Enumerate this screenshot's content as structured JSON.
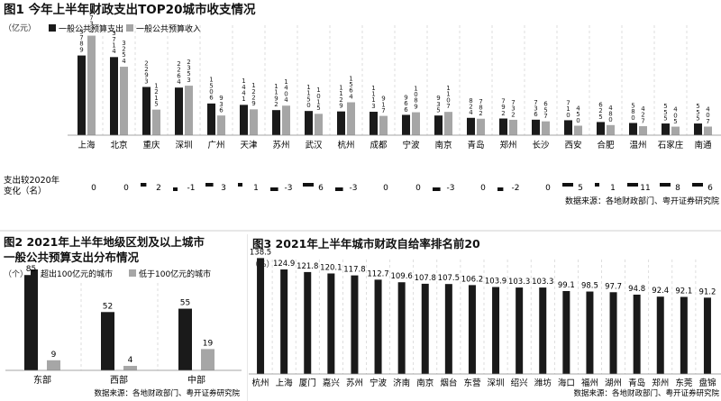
{
  "colors": {
    "expenditure": "#1a1a1a",
    "revenue": "#a6a6a6",
    "title": "#111111",
    "grid": "#d0d0d0"
  },
  "chart_data": [
    {
      "id": "fig1",
      "type": "bar",
      "title": "图1 今年上半年财政支出TOP20城市收支情况",
      "unit": "（亿元）",
      "legend_position": "top-left",
      "categories": [
        "上海",
        "北京",
        "重庆",
        "深圳",
        "广州",
        "天津",
        "苏州",
        "武汉",
        "杭州",
        "成都",
        "宁波",
        "南京",
        "青岛",
        "郑州",
        "长沙",
        "西安",
        "合肥",
        "温州",
        "石家庄",
        "南通"
      ],
      "series": [
        {
          "name": "一般公共预算支出",
          "color": "#1a1a1a",
          "values": [
            3789,
            3714,
            2293,
            2264,
            1506,
            1441,
            1192,
            1150,
            1129,
            1113,
            966,
            935,
            824,
            792,
            736,
            710,
            625,
            580,
            555,
            555
          ]
        },
        {
          "name": "一般公共预算收入",
          "color": "#a6a6a6",
          "values": [
            4732,
            3254,
            1215,
            2353,
            936,
            1229,
            1404,
            1015,
            1564,
            917,
            1089,
            1107,
            782,
            732,
            657,
            450,
            480,
            427,
            405,
            407
          ]
        }
      ],
      "change_label": "支出较2020年变化（名）",
      "rank_change": [
        0,
        0,
        2,
        -1,
        3,
        1,
        -3,
        6,
        -3,
        0,
        0,
        -3,
        0,
        -2,
        0,
        5,
        1,
        11,
        8,
        6
      ],
      "rank_change_text": [
        "0",
        "0",
        "2",
        "-1",
        "3",
        "1",
        "-3",
        "6",
        "-3",
        "0",
        "0",
        "-3",
        "0",
        "-2",
        "0",
        "5",
        "1",
        "11",
        "8",
        "6"
      ],
      "ylim": [
        0,
        4800
      ],
      "grid": "vertical-dashed",
      "source": "数据来源：各地财政部门、粤开证券研究院"
    },
    {
      "id": "fig2",
      "type": "bar",
      "title_line1": "图2  2021年上半年地级区划及以上城市",
      "title_line2": "一般公共预算支出分布情况",
      "unit": "（个）",
      "legend_position": "top",
      "categories": [
        "东部",
        "西部",
        "中部"
      ],
      "series": [
        {
          "name": "超出100亿元的城市",
          "color": "#1a1a1a",
          "values": [
            85,
            52,
            55
          ]
        },
        {
          "name": "低于100亿元的城市",
          "color": "#a6a6a6",
          "values": [
            9,
            4,
            19
          ]
        }
      ],
      "ylim": [
        0,
        90
      ],
      "grid": "vertical-dashed",
      "source": "数据来源：各地财政部门、粤开证券研究院"
    },
    {
      "id": "fig3",
      "type": "bar",
      "title": "图3 2021年上半年城市财政自给率排名前20",
      "unit": "（%）",
      "categories": [
        "杭州",
        "上海",
        "厦门",
        "嘉兴",
        "苏州",
        "宁波",
        "济南",
        "南京",
        "烟台",
        "东营",
        "深圳",
        "绍兴",
        "潍坊",
        "海口",
        "福州",
        "湖州",
        "青岛",
        "郑州",
        "东莞",
        "盘锦"
      ],
      "values": [
        138.5,
        124.9,
        121.8,
        120.1,
        117.8,
        112.7,
        109.6,
        107.8,
        107.5,
        106.2,
        103.9,
        103.3,
        103.3,
        99.1,
        98.5,
        97.7,
        94.8,
        92.4,
        92.1,
        91.2
      ],
      "value_labels": [
        "138.5",
        "124.9",
        "121.8",
        "120.1",
        "117.8",
        "112.7",
        "109.6",
        "107.8",
        "107.5",
        "106.2",
        "103.9",
        "103.3",
        "103.3",
        "99.1",
        "98.5",
        "97.7",
        "94.8",
        "92.4",
        "92.1",
        "91.2"
      ],
      "ylim": [
        0,
        140
      ],
      "grid": "vertical-dashed",
      "source": "数据来源：各地财政部门、粤开证券研究院"
    }
  ]
}
